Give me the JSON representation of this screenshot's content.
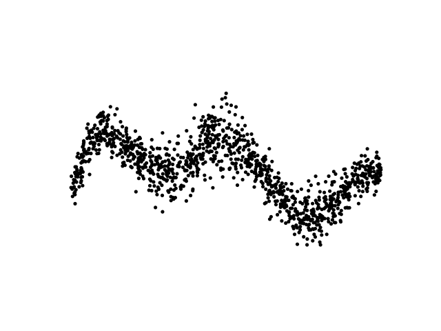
{
  "chart_data": {
    "type": "scatter",
    "title": "",
    "xlabel": "",
    "ylabel": "",
    "axes_visible": false,
    "grid": false,
    "legend": "none",
    "xlim": [
      0,
      1
    ],
    "ylim": [
      -1.6,
      1.6
    ],
    "marker_color": "#000000",
    "point_count": 1200,
    "series": [
      {
        "points_sampled_along_trend": true,
        "trend": [
          {
            "x": 0.0,
            "y": -0.25
          },
          {
            "x": 0.03,
            "y": 0.05
          },
          {
            "x": 0.06,
            "y": 0.35
          },
          {
            "x": 0.1,
            "y": 0.55
          },
          {
            "x": 0.15,
            "y": 0.45
          },
          {
            "x": 0.2,
            "y": 0.25
          },
          {
            "x": 0.25,
            "y": 0.05
          },
          {
            "x": 0.3,
            "y": -0.05
          },
          {
            "x": 0.35,
            "y": 0.0
          },
          {
            "x": 0.4,
            "y": 0.15
          },
          {
            "x": 0.45,
            "y": 0.4
          },
          {
            "x": 0.5,
            "y": 0.45
          },
          {
            "x": 0.55,
            "y": 0.35
          },
          {
            "x": 0.6,
            "y": 0.05
          },
          {
            "x": 0.65,
            "y": -0.25
          },
          {
            "x": 0.7,
            "y": -0.45
          },
          {
            "x": 0.75,
            "y": -0.75
          },
          {
            "x": 0.8,
            "y": -0.65
          },
          {
            "x": 0.85,
            "y": -0.45
          },
          {
            "x": 0.9,
            "y": -0.25
          },
          {
            "x": 0.95,
            "y": -0.05
          },
          {
            "x": 1.0,
            "y": -0.05
          }
        ],
        "scatter_sd": [
          {
            "x": 0.0,
            "sd": 0.14
          },
          {
            "x": 0.2,
            "sd": 0.16
          },
          {
            "x": 0.35,
            "sd": 0.2
          },
          {
            "x": 0.48,
            "sd": 0.28
          },
          {
            "x": 0.6,
            "sd": 0.16
          },
          {
            "x": 0.8,
            "sd": 0.2
          },
          {
            "x": 1.0,
            "sd": 0.12
          }
        ]
      }
    ]
  }
}
